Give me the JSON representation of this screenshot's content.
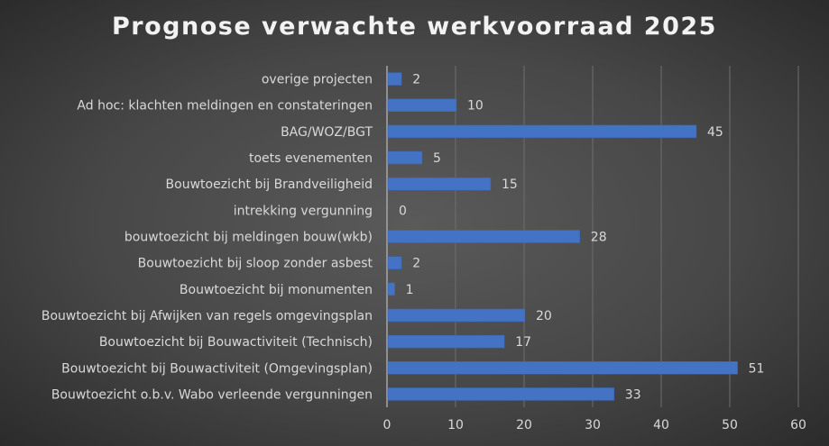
{
  "chart_data": {
    "type": "bar",
    "orientation": "horizontal",
    "title": "Prognose verwachte werkvoorraad 2025",
    "categories": [
      "overige projecten",
      "Ad hoc: klachten meldingen en constateringen",
      "BAG/WOZ/BGT",
      "toets evenementen",
      "Bouwtoezicht bij Brandveiligheid",
      "intrekking vergunning",
      "bouwtoezicht bij meldingen bouw(wkb)",
      "Bouwtoezicht bij sloop zonder asbest",
      "Bouwtoezicht bij monumenten",
      "Bouwtoezicht bij Afwijken van regels omgevingsplan",
      "Bouwtoezicht bij Bouwactiviteit (Technisch)",
      "Bouwtoezicht bij Bouwactiviteit (Omgevingsplan)",
      "Bouwtoezicht o.b.v. Wabo verleende vergunningen"
    ],
    "values": [
      2,
      10,
      45,
      5,
      15,
      0,
      28,
      2,
      1,
      20,
      17,
      51,
      33
    ],
    "xlim": [
      0,
      60
    ],
    "xticks": [
      "0",
      "10",
      "20",
      "30",
      "40",
      "50",
      "60"
    ],
    "xlabel": "",
    "ylabel": "",
    "grid": "vertical",
    "data_labels": true,
    "legend": "none",
    "bar_color": "#4472C4",
    "background": "#474747"
  }
}
